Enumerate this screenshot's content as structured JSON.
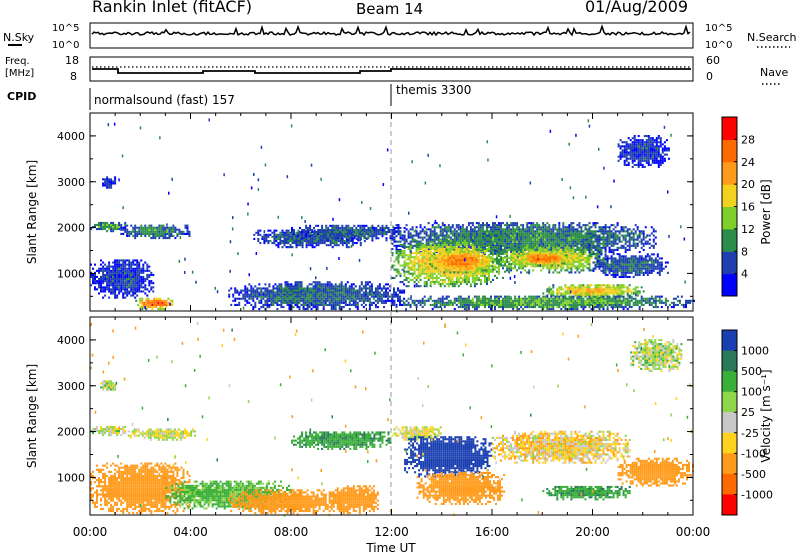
{
  "header": {
    "title": "Rankin Inlet (fitACF)",
    "beam": "Beam 14",
    "date": "01/Aug/2009"
  },
  "top_panels": {
    "nsky_label": "N.Sky",
    "nsky_ticks": [
      "10^5",
      "10^0"
    ],
    "nsearch_label": "N.Search",
    "freq_label_line1": "Freq.",
    "freq_label_line2": "[MHz]",
    "freq_ticks": [
      "18",
      "8"
    ],
    "nave_label": "Nave",
    "nave_ticks": [
      "60",
      "0"
    ],
    "cpid_label": "CPID",
    "cpid_mode_1": "normalsound (fast) 157",
    "cpid_mode_2": "themis 3300"
  },
  "axes": {
    "xlabel": "Time UT",
    "ylabel": "Slant Range [km]",
    "x_ticks": [
      "00:00",
      "04:00",
      "08:00",
      "12:00",
      "16:00",
      "20:00",
      "00:00"
    ],
    "y_ticks": [
      "1000",
      "2000",
      "3000",
      "4000"
    ]
  },
  "colorbars": {
    "power": {
      "label": "Power [dB]",
      "ticks": [
        "4",
        "8",
        "12",
        "16",
        "20",
        "24",
        "28"
      ],
      "colors": [
        "#0000ff",
        "#1f3fb0",
        "#2c8c4a",
        "#7fcf2a",
        "#f2d21e",
        "#ff9a1a",
        "#ff6a00",
        "#ff0000"
      ]
    },
    "velocity": {
      "label": "Velocity [m s⁻¹]",
      "ticks": [
        "1000",
        "500",
        "100",
        "25",
        "-25",
        "-100",
        "-500",
        "-1000"
      ],
      "colors": [
        "#1a3fb0",
        "#2a7a5a",
        "#3aaf3a",
        "#8fd64a",
        "#c8c8c8",
        "#ffd21e",
        "#ff9a1a",
        "#ff6a00",
        "#ff0000"
      ]
    }
  },
  "chart_data": {
    "type": "heatmap",
    "title": "Rankin Inlet (fitACF)",
    "xlabel": "Time UT",
    "ylabel": "Slant Range [km]",
    "xlim": [
      0,
      24
    ],
    "ylim": [
      180,
      4500
    ],
    "panels": [
      {
        "name": "Power",
        "unit": "dB",
        "colorbar_range": [
          0,
          32
        ],
        "blobs": [
          {
            "t0": 0.0,
            "t1": 2.5,
            "r0": 450,
            "r1": 1300,
            "v": 6
          },
          {
            "t0": 0.0,
            "t1": 1.5,
            "r0": 1900,
            "r1": 2100,
            "v": 12
          },
          {
            "t0": 0.4,
            "t1": 1.0,
            "r0": 2850,
            "r1": 3100,
            "v": 5
          },
          {
            "t0": 1.2,
            "t1": 4.0,
            "r0": 1750,
            "r1": 2050,
            "v": 10
          },
          {
            "t0": 1.8,
            "t1": 3.4,
            "r0": 200,
            "r1": 450,
            "v": 27
          },
          {
            "t0": 5.5,
            "t1": 12.5,
            "r0": 200,
            "r1": 800,
            "v": 8
          },
          {
            "t0": 6.5,
            "t1": 11.0,
            "r0": 1550,
            "r1": 1950,
            "v": 8
          },
          {
            "t0": 8.0,
            "t1": 12.5,
            "r0": 1700,
            "r1": 2050,
            "v": 8
          },
          {
            "t0": 12.0,
            "t1": 22.5,
            "r0": 1400,
            "r1": 2100,
            "v": 10
          },
          {
            "t0": 12.0,
            "t1": 16.5,
            "r0": 700,
            "r1": 1700,
            "v": 20
          },
          {
            "t0": 13.5,
            "t1": 16.0,
            "r0": 1000,
            "r1": 1500,
            "v": 25
          },
          {
            "t0": 16.0,
            "t1": 20.5,
            "r0": 1000,
            "r1": 1600,
            "v": 18
          },
          {
            "t0": 17.0,
            "t1": 19.0,
            "r0": 1150,
            "r1": 1450,
            "v": 26
          },
          {
            "t0": 18.0,
            "t1": 22.0,
            "r0": 450,
            "r1": 750,
            "v": 20
          },
          {
            "t0": 20.0,
            "t1": 23.0,
            "r0": 900,
            "r1": 1400,
            "v": 8
          },
          {
            "t0": 12.0,
            "t1": 24.0,
            "r0": 200,
            "r1": 500,
            "v": 12
          },
          {
            "t0": 21.0,
            "t1": 23.0,
            "r0": 3300,
            "r1": 4000,
            "v": 6
          }
        ]
      },
      {
        "name": "Velocity",
        "unit": "m s-1",
        "colorbar_range": [
          -1000,
          1000
        ],
        "blobs": [
          {
            "t0": 0.0,
            "t1": 4.0,
            "r0": 200,
            "r1": 1300,
            "v": -300
          },
          {
            "t0": 0.4,
            "t1": 1.0,
            "r0": 2850,
            "r1": 3100,
            "v": 20
          },
          {
            "t0": 0.0,
            "t1": 1.5,
            "r0": 1900,
            "r1": 2100,
            "v": 10
          },
          {
            "t0": 1.5,
            "t1": 4.2,
            "r0": 1800,
            "r1": 2050,
            "v": 0
          },
          {
            "t0": 3.0,
            "t1": 8.0,
            "r0": 300,
            "r1": 900,
            "v": 150
          },
          {
            "t0": 5.5,
            "t1": 10.0,
            "r0": 200,
            "r1": 700,
            "v": -300
          },
          {
            "t0": 8.0,
            "t1": 12.0,
            "r0": 1600,
            "r1": 2000,
            "v": 200
          },
          {
            "t0": 9.5,
            "t1": 11.5,
            "r0": 200,
            "r1": 800,
            "v": -200
          },
          {
            "t0": 12.0,
            "t1": 14.0,
            "r0": 1800,
            "r1": 2100,
            "v": 0
          },
          {
            "t0": 12.5,
            "t1": 16.0,
            "r0": 1000,
            "r1": 1900,
            "v": 600
          },
          {
            "t0": 13.0,
            "t1": 16.5,
            "r0": 400,
            "r1": 1100,
            "v": -400
          },
          {
            "t0": 16.0,
            "t1": 21.5,
            "r0": 1300,
            "r1": 2000,
            "v": -50
          },
          {
            "t0": 18.0,
            "t1": 21.5,
            "r0": 500,
            "r1": 800,
            "v": 200
          },
          {
            "t0": 21.0,
            "t1": 24.0,
            "r0": 800,
            "r1": 1400,
            "v": -300
          },
          {
            "t0": 21.5,
            "t1": 23.5,
            "r0": 3300,
            "r1": 4000,
            "v": 30
          }
        ]
      }
    ]
  }
}
